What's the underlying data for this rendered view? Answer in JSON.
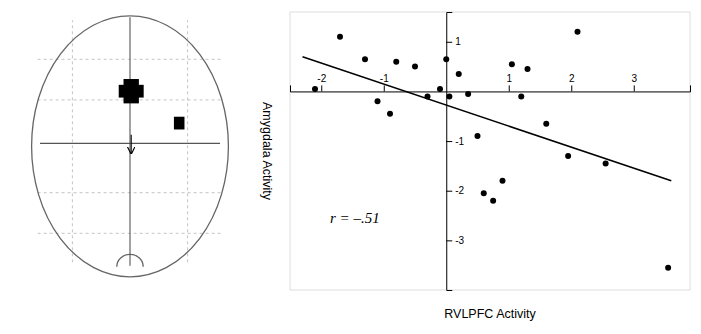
{
  "chart_data": {
    "type": "scatter",
    "xlabel": "RVLPFC Activity",
    "ylabel": "Amygdala Activity",
    "annotation": "r = –.51",
    "series": [
      {
        "type": "scatter",
        "color": "#000000",
        "x": [
          -2.1,
          -1.7,
          -1.3,
          -1.1,
          -0.9,
          -0.8,
          -0.5,
          -0.3,
          -0.1,
          0.0,
          0.05,
          0.2,
          0.35,
          0.5,
          0.6,
          0.75,
          0.9,
          1.05,
          1.2,
          1.3,
          1.6,
          1.95,
          2.1,
          2.55,
          3.55
        ],
        "values": [
          0.05,
          1.1,
          0.65,
          -0.2,
          -0.45,
          0.6,
          0.5,
          -0.1,
          0.05,
          0.65,
          -0.1,
          0.35,
          -0.05,
          -0.9,
          -2.05,
          -2.2,
          -1.8,
          0.55,
          -0.1,
          0.45,
          -0.65,
          -1.3,
          1.2,
          -1.45,
          -3.55
        ]
      },
      {
        "type": "line",
        "color": "#000000",
        "x": [
          -2.3,
          3.6
        ],
        "values": [
          0.7,
          -1.8
        ]
      }
    ],
    "xlim": [
      -2.5,
      3.9
    ],
    "ylim": [
      -4.0,
      1.6
    ],
    "xticks": [
      -2,
      -1,
      1,
      2,
      3
    ],
    "yticks": [
      -3,
      -2,
      -1,
      1
    ],
    "grid": false
  }
}
